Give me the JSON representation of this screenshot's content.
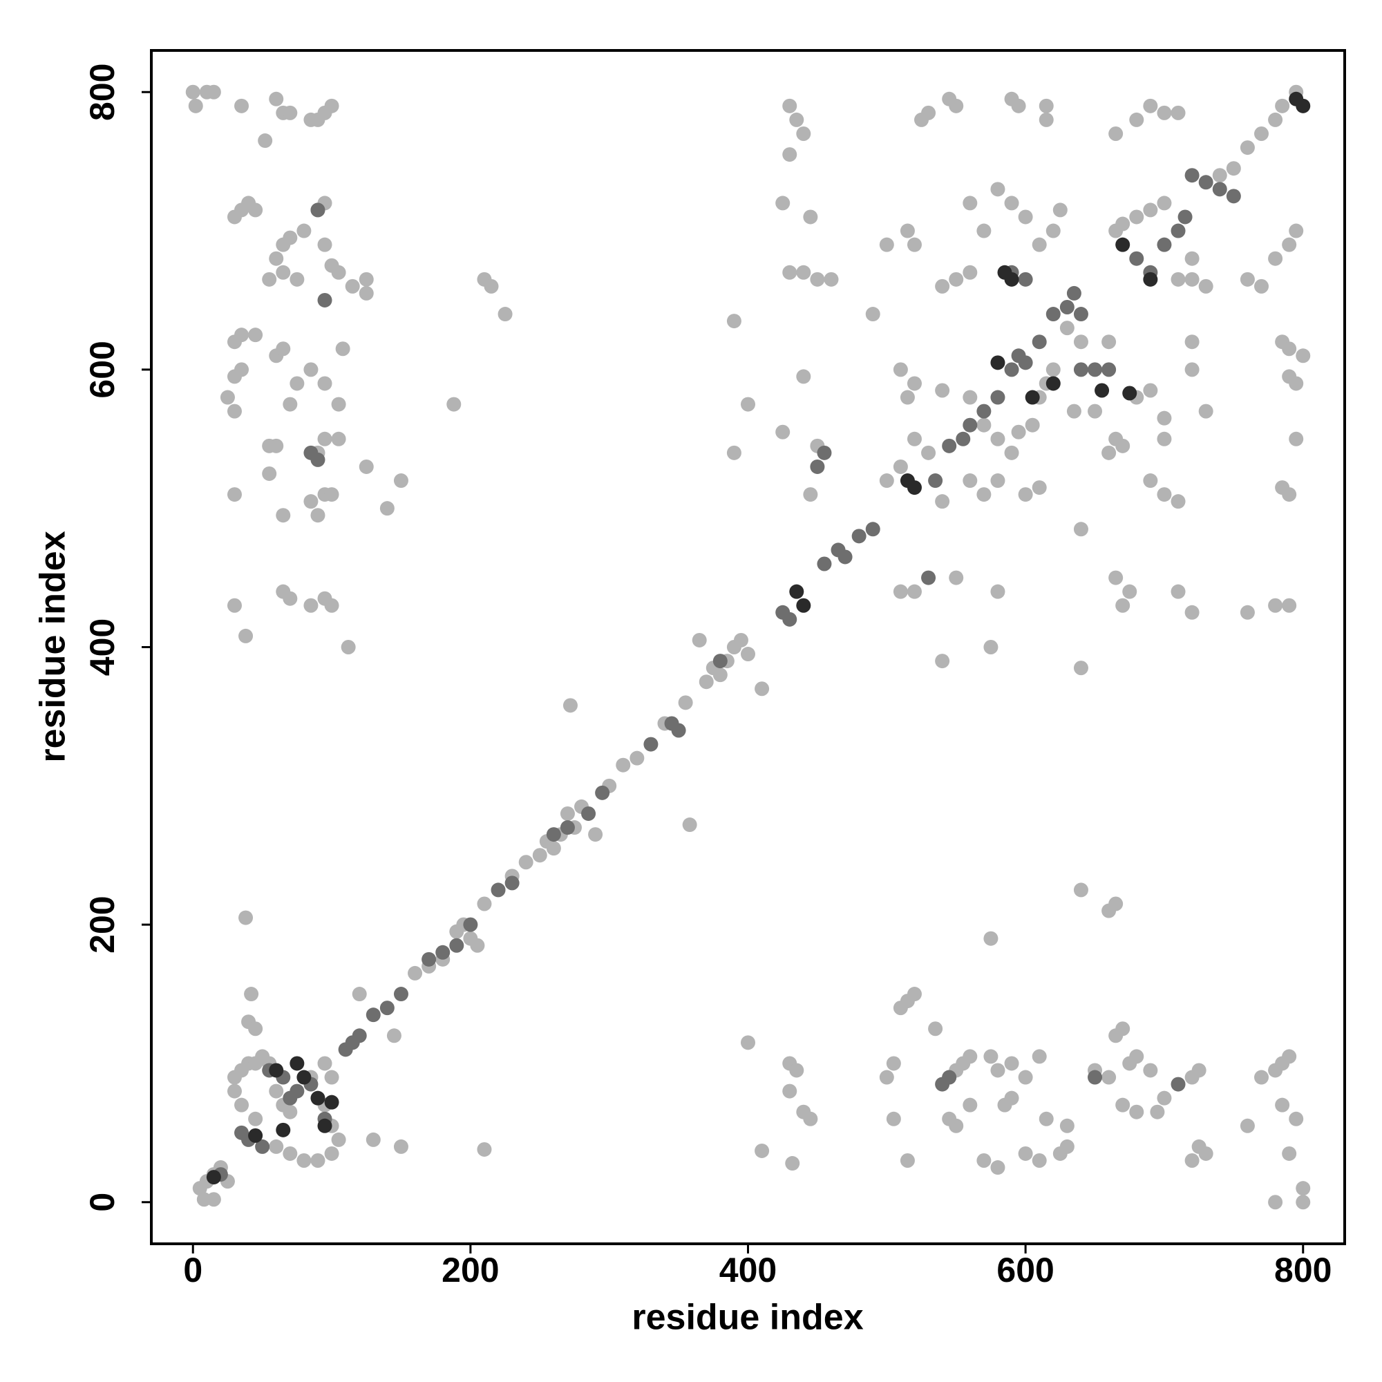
{
  "chart_data": {
    "type": "scatter",
    "xlabel": "residue index",
    "ylabel": "residue index",
    "xlim": [
      -30,
      830
    ],
    "ylim": [
      -30,
      830
    ],
    "xticks": [
      0,
      200,
      400,
      600,
      800
    ],
    "yticks": [
      0,
      200,
      400,
      600,
      800
    ],
    "grid": false,
    "series": [
      {
        "color": "#b3b3b3",
        "x": [
          5,
          10,
          15,
          20,
          25,
          8,
          15,
          30,
          35,
          40,
          45,
          50,
          55,
          30,
          35,
          45,
          60,
          70,
          80,
          90,
          100,
          105,
          100,
          95,
          100,
          95,
          65,
          70,
          60,
          85,
          40,
          45,
          38,
          42,
          120,
          130,
          150,
          145,
          210,
          160,
          170,
          180,
          190,
          195,
          200,
          205,
          210,
          230,
          240,
          250,
          255,
          260,
          265,
          270,
          275,
          280,
          290,
          300,
          310,
          320,
          340,
          355,
          370,
          375,
          380,
          385,
          390,
          395,
          400,
          365,
          410,
          272,
          358,
          390,
          188,
          400,
          225,
          210,
          215,
          390,
          0,
          2,
          10,
          15,
          35,
          52,
          60,
          65,
          70,
          85,
          90,
          95,
          100,
          30,
          35,
          40,
          45,
          60,
          65,
          70,
          80,
          90,
          95,
          55,
          65,
          75,
          95,
          100,
          105,
          115,
          125,
          125,
          30,
          35,
          45,
          60,
          65,
          25,
          30,
          30,
          35,
          70,
          75,
          85,
          95,
          105,
          55,
          60,
          55,
          65,
          30,
          90,
          85,
          95,
          100,
          90,
          95,
          105,
          125,
          140,
          150,
          65,
          70,
          85,
          95,
          100,
          30,
          38,
          112,
          108,
          430,
          435,
          440,
          430,
          425,
          445,
          430,
          440,
          450,
          460,
          440,
          425,
          450,
          445,
          490,
          500,
          515,
          520,
          525,
          530,
          550,
          560,
          570,
          580,
          590,
          600,
          610,
          620,
          615,
          625,
          550,
          560,
          540,
          510,
          520,
          515,
          540,
          560,
          570,
          580,
          590,
          520,
          530,
          510,
          500,
          540,
          560,
          570,
          580,
          600,
          610,
          595,
          605,
          630,
          640,
          620,
          615,
          610,
          635,
          650,
          660,
          665,
          670,
          680,
          690,
          700,
          665,
          680,
          690,
          700,
          710,
          720,
          710,
          720,
          730,
          680,
          690,
          700,
          700,
          690,
          700,
          710,
          720,
          720,
          730,
          670,
          660,
          665,
          760,
          770,
          780,
          790,
          795,
          785,
          790,
          800,
          790,
          795,
          795,
          785,
          790,
          780,
          790,
          760,
          720,
          710,
          675,
          670,
          665,
          580,
          550,
          510,
          520,
          540,
          575,
          640,
          640,
          770,
          760,
          750,
          740,
          780,
          785,
          795,
          590,
          595,
          545,
          615,
          430,
          435,
          430,
          440,
          445,
          432,
          410,
          400,
          510,
          515,
          520,
          535,
          505,
          500,
          505,
          515,
          545,
          550,
          555,
          560,
          580,
          575,
          590,
          600,
          610,
          545,
          550,
          560,
          570,
          580,
          585,
          590,
          600,
          610,
          615,
          625,
          630,
          630,
          665,
          670,
          675,
          680,
          690,
          670,
          680,
          695,
          700,
          720,
          725,
          720,
          725,
          730,
          760,
          770,
          780,
          785,
          790,
          785,
          795,
          790,
          800,
          800,
          780,
          660,
          665,
          575,
          640,
          660,
          650
        ],
        "values": [
          10,
          15,
          20,
          25,
          15,
          2,
          2,
          90,
          95,
          100,
          100,
          105,
          100,
          80,
          70,
          60,
          40,
          35,
          30,
          30,
          35,
          45,
          55,
          70,
          90,
          100,
          70,
          65,
          80,
          90,
          130,
          125,
          205,
          150,
          150,
          45,
          40,
          120,
          38,
          165,
          170,
          175,
          195,
          200,
          190,
          185,
          215,
          235,
          245,
          250,
          260,
          255,
          265,
          280,
          270,
          285,
          265,
          300,
          315,
          320,
          345,
          360,
          375,
          385,
          380,
          390,
          400,
          405,
          395,
          405,
          370,
          358,
          272,
          635,
          575,
          575,
          640,
          665,
          660,
          540,
          800,
          790,
          800,
          800,
          790,
          765,
          795,
          785,
          785,
          780,
          780,
          785,
          790,
          710,
          715,
          720,
          715,
          680,
          690,
          695,
          700,
          715,
          720,
          665,
          670,
          665,
          690,
          675,
          670,
          660,
          665,
          655,
          620,
          625,
          625,
          610,
          615,
          580,
          570,
          595,
          600,
          575,
          590,
          600,
          590,
          575,
          545,
          545,
          525,
          495,
          510,
          495,
          505,
          510,
          510,
          540,
          550,
          550,
          530,
          500,
          520,
          440,
          435,
          430,
          435,
          430,
          430,
          408,
          400,
          615,
          790,
          780,
          770,
          755,
          720,
          710,
          670,
          670,
          665,
          665,
          595,
          555,
          545,
          510,
          640,
          690,
          700,
          690,
          780,
          785,
          790,
          720,
          700,
          730,
          720,
          710,
          690,
          700,
          780,
          715,
          665,
          670,
          660,
          600,
          590,
          580,
          585,
          580,
          560,
          550,
          540,
          550,
          540,
          530,
          520,
          505,
          520,
          510,
          520,
          510,
          515,
          555,
          560,
          630,
          620,
          600,
          590,
          580,
          570,
          570,
          620,
          700,
          705,
          710,
          715,
          720,
          770,
          780,
          790,
          785,
          785,
          680,
          665,
          665,
          660,
          580,
          585,
          565,
          550,
          520,
          510,
          505,
          600,
          620,
          570,
          545,
          540,
          550,
          665,
          660,
          680,
          690,
          700,
          620,
          615,
          610,
          595,
          590,
          550,
          515,
          510,
          430,
          430,
          425,
          425,
          440,
          440,
          430,
          450,
          440,
          450,
          440,
          440,
          390,
          400,
          385,
          485,
          770,
          760,
          745,
          740,
          780,
          790,
          800,
          795,
          790,
          795,
          790,
          100,
          95,
          80,
          65,
          60,
          28,
          37,
          115,
          140,
          145,
          150,
          125,
          100,
          90,
          60,
          30,
          90,
          95,
          100,
          105,
          95,
          105,
          100,
          90,
          105,
          60,
          55,
          70,
          30,
          25,
          70,
          75,
          35,
          30,
          60,
          35,
          40,
          55,
          120,
          125,
          100,
          105,
          95,
          70,
          65,
          65,
          75,
          90,
          95,
          30,
          40,
          35,
          55,
          90,
          95,
          100,
          105,
          70,
          60,
          35,
          10,
          0,
          0,
          210,
          215,
          190,
          225,
          90,
          95
        ]
      },
      {
        "color": "#6e6e6e",
        "x": [
          35,
          40,
          50,
          55,
          65,
          75,
          85,
          95,
          70,
          110,
          115,
          120,
          130,
          140,
          150,
          170,
          180,
          190,
          200,
          220,
          230,
          260,
          270,
          285,
          295,
          330,
          345,
          350,
          380,
          425,
          430,
          455,
          465,
          470,
          480,
          490,
          530,
          535,
          545,
          555,
          560,
          570,
          580,
          590,
          595,
          600,
          610,
          620,
          630,
          635,
          640,
          600,
          590,
          650,
          660,
          640,
          700,
          710,
          715,
          720,
          730,
          740,
          750,
          680,
          690,
          95,
          90,
          85,
          90,
          650,
          540,
          545,
          710,
          20,
          450,
          455
        ],
        "values": [
          50,
          45,
          40,
          95,
          90,
          80,
          85,
          60,
          75,
          110,
          115,
          120,
          135,
          140,
          150,
          175,
          180,
          185,
          200,
          225,
          230,
          265,
          270,
          280,
          295,
          330,
          345,
          340,
          390,
          425,
          420,
          460,
          470,
          465,
          480,
          485,
          450,
          520,
          545,
          550,
          560,
          570,
          580,
          600,
          610,
          605,
          620,
          640,
          645,
          655,
          640,
          665,
          670,
          600,
          600,
          600,
          690,
          700,
          710,
          740,
          735,
          730,
          725,
          680,
          670,
          650,
          715,
          540,
          535,
          90,
          85,
          90,
          85,
          20,
          530,
          540
        ]
      },
      {
        "color": "#2a2a2a",
        "x": [
          75,
          80,
          90,
          95,
          15,
          100,
          435,
          440,
          515,
          520,
          585,
          590,
          580,
          605,
          620,
          655,
          675,
          670,
          690,
          795,
          800,
          60,
          65,
          45
        ],
        "values": [
          100,
          90,
          75,
          55,
          18,
          72,
          440,
          430,
          520,
          515,
          670,
          665,
          605,
          580,
          590,
          585,
          583,
          690,
          665,
          795,
          790,
          95,
          52,
          48
        ]
      }
    ]
  }
}
